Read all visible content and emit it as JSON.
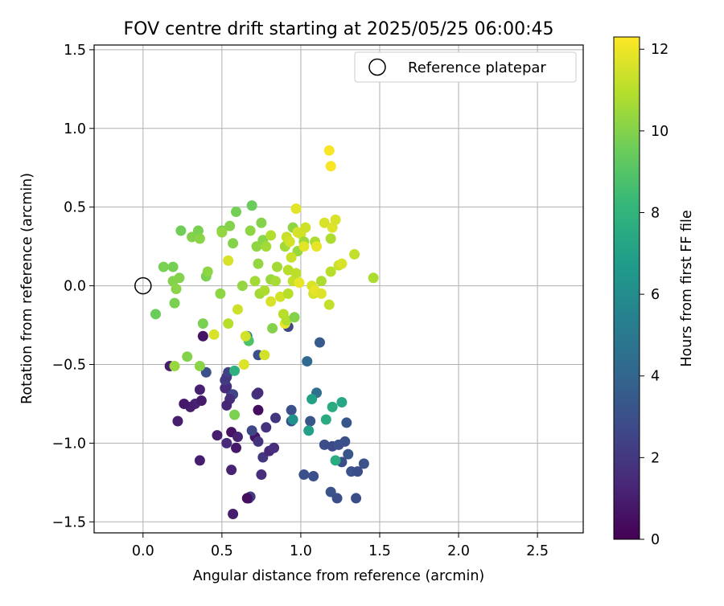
{
  "chart_data": {
    "type": "scatter",
    "title": "FOV centre drift starting at 2025/05/25 06:00:45",
    "xlabel": "Angular distance from reference (arcmin)",
    "ylabel": "Rotation from reference (arcmin)",
    "xlim": [
      -0.31,
      2.79
    ],
    "ylim": [
      -1.57,
      1.53
    ],
    "x_ticks": [
      "0.0",
      "0.5",
      "1.0",
      "1.5",
      "2.0",
      "2.5"
    ],
    "x_tick_values": [
      0,
      0.5,
      1.0,
      1.5,
      2.0,
      2.5
    ],
    "y_ticks": [
      "1.5",
      "1.0",
      "0.5",
      "0.0",
      "−0.5",
      "−1.0",
      "−1.5"
    ],
    "y_tick_values": [
      1.5,
      1.0,
      0.5,
      0.0,
      -0.5,
      -1.0,
      -1.5
    ],
    "grid": true,
    "legend": {
      "placement": "top-right",
      "entries": [
        {
          "label": "Reference platepar",
          "marker": "open-circle"
        }
      ]
    },
    "reference_point": {
      "x": 0.0,
      "y": 0.0
    },
    "colorbar": {
      "label": "Hours from first FF file",
      "min": 0,
      "max": 12.3,
      "ticks": [
        "0",
        "2",
        "4",
        "6",
        "8",
        "10",
        "12"
      ],
      "tick_values": [
        0,
        2,
        4,
        6,
        8,
        10,
        12
      ],
      "colormap": "viridis"
    },
    "points": [
      {
        "x": 0.47,
        "y": -0.95,
        "h": 1.0
      },
      {
        "x": 0.53,
        "y": -0.64,
        "h": 2.0
      },
      {
        "x": 0.56,
        "y": -0.69,
        "h": 1.8
      },
      {
        "x": 0.57,
        "y": -1.45,
        "h": 1.0
      },
      {
        "x": 0.56,
        "y": -1.17,
        "h": 1.2
      },
      {
        "x": 0.59,
        "y": -1.03,
        "h": 0.8
      },
      {
        "x": 0.67,
        "y": -1.35,
        "h": 0.6
      },
      {
        "x": 0.68,
        "y": -1.34,
        "h": 2.2
      },
      {
        "x": 0.66,
        "y": -1.35,
        "h": 0.5
      },
      {
        "x": 0.33,
        "y": -0.75,
        "h": 1.2
      },
      {
        "x": 0.3,
        "y": -0.77,
        "h": 1.0
      },
      {
        "x": 0.26,
        "y": -0.75,
        "h": 0.8
      },
      {
        "x": 0.22,
        "y": -0.86,
        "h": 1.0
      },
      {
        "x": 0.37,
        "y": -0.73,
        "h": 0.9
      },
      {
        "x": 0.36,
        "y": -0.66,
        "h": 1.1
      },
      {
        "x": 0.36,
        "y": -1.11,
        "h": 1.0
      },
      {
        "x": 0.17,
        "y": -0.51,
        "h": 1.0
      },
      {
        "x": 0.38,
        "y": -0.32,
        "h": 0.6
      },
      {
        "x": 0.52,
        "y": -0.65,
        "h": 1.5
      },
      {
        "x": 0.52,
        "y": -0.6,
        "h": 2.2
      },
      {
        "x": 0.56,
        "y": -0.93,
        "h": 0.6
      },
      {
        "x": 0.53,
        "y": -1.0,
        "h": 1.5
      },
      {
        "x": 0.57,
        "y": -0.69,
        "h": 2.5
      },
      {
        "x": 0.6,
        "y": -0.96,
        "h": 1.2
      },
      {
        "x": 0.55,
        "y": -0.72,
        "h": 1.6
      },
      {
        "x": 0.53,
        "y": -0.76,
        "h": 1.3
      },
      {
        "x": 0.53,
        "y": -0.58,
        "h": 2.0
      },
      {
        "x": 0.54,
        "y": -0.55,
        "h": 2.4
      },
      {
        "x": 0.73,
        "y": -0.79,
        "h": 0.4
      },
      {
        "x": 0.71,
        "y": -0.96,
        "h": 0.7
      },
      {
        "x": 0.72,
        "y": -0.69,
        "h": 2.0
      },
      {
        "x": 0.73,
        "y": -0.68,
        "h": 1.6
      },
      {
        "x": 0.73,
        "y": -0.99,
        "h": 1.8
      },
      {
        "x": 0.69,
        "y": -0.92,
        "h": 2.6
      },
      {
        "x": 0.76,
        "y": -1.09,
        "h": 2.0
      },
      {
        "x": 0.75,
        "y": -1.2,
        "h": 1.6
      },
      {
        "x": 0.78,
        "y": -0.9,
        "h": 1.8
      },
      {
        "x": 0.8,
        "y": -1.05,
        "h": 1.4
      },
      {
        "x": 0.83,
        "y": -1.03,
        "h": 1.7
      },
      {
        "x": 0.84,
        "y": -0.84,
        "h": 1.9
      },
      {
        "x": 0.73,
        "y": -0.44,
        "h": 3.0
      },
      {
        "x": 0.92,
        "y": -0.26,
        "h": 2.6
      },
      {
        "x": 0.4,
        "y": -0.55,
        "h": 3.0
      },
      {
        "x": 0.94,
        "y": -0.79,
        "h": 3.0
      },
      {
        "x": 0.94,
        "y": -0.86,
        "h": 2.9
      },
      {
        "x": 1.02,
        "y": -1.2,
        "h": 3.0
      },
      {
        "x": 1.06,
        "y": -0.86,
        "h": 3.3
      },
      {
        "x": 1.08,
        "y": -1.21,
        "h": 3.0
      },
      {
        "x": 1.12,
        "y": -0.36,
        "h": 3.5
      },
      {
        "x": 1.04,
        "y": -0.48,
        "h": 4.2
      },
      {
        "x": 1.1,
        "y": -0.68,
        "h": 4.5
      },
      {
        "x": 1.15,
        "y": -1.01,
        "h": 2.9
      },
      {
        "x": 1.2,
        "y": -1.02,
        "h": 2.7
      },
      {
        "x": 1.19,
        "y": -1.31,
        "h": 3.2
      },
      {
        "x": 1.23,
        "y": -1.35,
        "h": 2.9
      },
      {
        "x": 1.24,
        "y": -1.01,
        "h": 3.0
      },
      {
        "x": 1.26,
        "y": -1.12,
        "h": 2.9
      },
      {
        "x": 1.28,
        "y": -0.99,
        "h": 3.0
      },
      {
        "x": 1.29,
        "y": -0.87,
        "h": 3.3
      },
      {
        "x": 1.3,
        "y": -1.07,
        "h": 3.3
      },
      {
        "x": 1.32,
        "y": -1.18,
        "h": 3.1
      },
      {
        "x": 1.35,
        "y": -1.35,
        "h": 2.9
      },
      {
        "x": 1.36,
        "y": -1.18,
        "h": 2.9
      },
      {
        "x": 1.4,
        "y": -1.13,
        "h": 3.1
      },
      {
        "x": 0.95,
        "y": -0.85,
        "h": 6.2
      },
      {
        "x": 1.05,
        "y": -0.92,
        "h": 7.0
      },
      {
        "x": 1.07,
        "y": -0.72,
        "h": 7.0
      },
      {
        "x": 1.16,
        "y": -0.85,
        "h": 7.5
      },
      {
        "x": 1.2,
        "y": -0.77,
        "h": 7.5
      },
      {
        "x": 1.26,
        "y": -0.74,
        "h": 7.3
      },
      {
        "x": 1.22,
        "y": -1.11,
        "h": 7.6
      },
      {
        "x": 0.58,
        "y": -0.54,
        "h": 7.8
      },
      {
        "x": 0.66,
        "y": -0.32,
        "h": 5.5
      },
      {
        "x": 0.67,
        "y": -0.35,
        "h": 8.8
      },
      {
        "x": 0.58,
        "y": -0.82,
        "h": 9.8
      },
      {
        "x": 0.2,
        "y": -0.51,
        "h": 10.4
      },
      {
        "x": 0.28,
        "y": -0.45,
        "h": 10.0
      },
      {
        "x": 0.36,
        "y": -0.51,
        "h": 10.1
      },
      {
        "x": 0.38,
        "y": -0.24,
        "h": 9.8
      },
      {
        "x": 0.08,
        "y": -0.18,
        "h": 9.5
      },
      {
        "x": 0.2,
        "y": -0.11,
        "h": 9.8
      },
      {
        "x": 0.19,
        "y": 0.03,
        "h": 10.0
      },
      {
        "x": 0.21,
        "y": -0.02,
        "h": 10.1
      },
      {
        "x": 0.23,
        "y": 0.05,
        "h": 10.0
      },
      {
        "x": 0.13,
        "y": 0.12,
        "h": 9.8
      },
      {
        "x": 0.19,
        "y": 0.12,
        "h": 9.7
      },
      {
        "x": 0.4,
        "y": 0.06,
        "h": 9.8
      },
      {
        "x": 0.41,
        "y": 0.09,
        "h": 10.2
      },
      {
        "x": 0.24,
        "y": 0.35,
        "h": 9.6
      },
      {
        "x": 0.31,
        "y": 0.31,
        "h": 10.0
      },
      {
        "x": 0.35,
        "y": 0.35,
        "h": 9.8
      },
      {
        "x": 0.36,
        "y": 0.3,
        "h": 10.1
      },
      {
        "x": 0.5,
        "y": 0.35,
        "h": 9.7
      },
      {
        "x": 0.5,
        "y": 0.34,
        "h": 10.3
      },
      {
        "x": 0.55,
        "y": 0.38,
        "h": 10.0
      },
      {
        "x": 0.57,
        "y": 0.27,
        "h": 10.0
      },
      {
        "x": 0.59,
        "y": 0.47,
        "h": 9.7
      },
      {
        "x": 0.69,
        "y": 0.51,
        "h": 9.5
      },
      {
        "x": 0.68,
        "y": 0.35,
        "h": 10.2
      },
      {
        "x": 0.72,
        "y": 0.25,
        "h": 10.2
      },
      {
        "x": 0.75,
        "y": 0.4,
        "h": 10.0
      },
      {
        "x": 0.76,
        "y": 0.29,
        "h": 10.1
      },
      {
        "x": 0.73,
        "y": 0.14,
        "h": 10.3
      },
      {
        "x": 0.78,
        "y": 0.25,
        "h": 10.6
      },
      {
        "x": 0.81,
        "y": 0.32,
        "h": 10.9
      },
      {
        "x": 0.71,
        "y": 0.03,
        "h": 10.6
      },
      {
        "x": 0.63,
        "y": 0.0,
        "h": 10.3
      },
      {
        "x": 0.49,
        "y": -0.05,
        "h": 10.2
      },
      {
        "x": 0.54,
        "y": 0.16,
        "h": 11.6
      },
      {
        "x": 0.6,
        "y": -0.15,
        "h": 11.4
      },
      {
        "x": 0.54,
        "y": -0.24,
        "h": 11.0
      },
      {
        "x": 0.45,
        "y": -0.31,
        "h": 11.6
      },
      {
        "x": 0.64,
        "y": -0.5,
        "h": 11.7
      },
      {
        "x": 0.65,
        "y": -0.32,
        "h": 11.5
      },
      {
        "x": 0.77,
        "y": -0.44,
        "h": 11.5
      },
      {
        "x": 0.74,
        "y": -0.05,
        "h": 10.6
      },
      {
        "x": 0.77,
        "y": -0.03,
        "h": 10.8
      },
      {
        "x": 0.82,
        "y": -0.27,
        "h": 10.0
      },
      {
        "x": 0.81,
        "y": 0.04,
        "h": 10.4
      },
      {
        "x": 0.84,
        "y": 0.03,
        "h": 10.7
      },
      {
        "x": 0.81,
        "y": -0.1,
        "h": 11.6
      },
      {
        "x": 0.87,
        "y": -0.07,
        "h": 11.5
      },
      {
        "x": 0.89,
        "y": -0.18,
        "h": 11.0
      },
      {
        "x": 0.9,
        "y": -0.24,
        "h": 11.9
      },
      {
        "x": 0.91,
        "y": -0.22,
        "h": 10.9
      },
      {
        "x": 0.92,
        "y": -0.05,
        "h": 11.0
      },
      {
        "x": 0.85,
        "y": 0.12,
        "h": 10.6
      },
      {
        "x": 0.9,
        "y": 0.25,
        "h": 10.6
      },
      {
        "x": 0.91,
        "y": 0.31,
        "h": 11.3
      },
      {
        "x": 0.93,
        "y": 0.28,
        "h": 11.5
      },
      {
        "x": 0.92,
        "y": 0.1,
        "h": 11.0
      },
      {
        "x": 0.95,
        "y": 0.37,
        "h": 10.2
      },
      {
        "x": 0.97,
        "y": 0.49,
        "h": 11.8
      },
      {
        "x": 0.98,
        "y": 0.22,
        "h": 10.4
      },
      {
        "x": 0.98,
        "y": 0.34,
        "h": 11.6
      },
      {
        "x": 0.95,
        "y": 0.03,
        "h": 11.2
      },
      {
        "x": 0.96,
        "y": -0.2,
        "h": 10.0
      },
      {
        "x": 0.97,
        "y": 0.08,
        "h": 11.1
      },
      {
        "x": 0.94,
        "y": 0.18,
        "h": 11.3
      },
      {
        "x": 0.99,
        "y": 0.02,
        "h": 11.9
      },
      {
        "x": 1.0,
        "y": 0.33,
        "h": 11.5
      },
      {
        "x": 1.02,
        "y": 0.28,
        "h": 10.5
      },
      {
        "x": 1.03,
        "y": 0.37,
        "h": 11.4
      },
      {
        "x": 1.02,
        "y": 0.25,
        "h": 11.8
      },
      {
        "x": 1.09,
        "y": 0.28,
        "h": 10.8
      },
      {
        "x": 1.1,
        "y": 0.25,
        "h": 11.9
      },
      {
        "x": 1.07,
        "y": 0.0,
        "h": 11.6
      },
      {
        "x": 1.08,
        "y": -0.05,
        "h": 11.5
      },
      {
        "x": 1.09,
        "y": -0.03,
        "h": 11.9
      },
      {
        "x": 1.13,
        "y": 0.03,
        "h": 10.8
      },
      {
        "x": 1.13,
        "y": -0.05,
        "h": 11.7
      },
      {
        "x": 1.15,
        "y": 0.4,
        "h": 11.6
      },
      {
        "x": 1.19,
        "y": 0.3,
        "h": 10.8
      },
      {
        "x": 1.2,
        "y": 0.37,
        "h": 11.7
      },
      {
        "x": 1.22,
        "y": 0.42,
        "h": 11.6
      },
      {
        "x": 1.19,
        "y": 0.09,
        "h": 11.0
      },
      {
        "x": 1.18,
        "y": -0.12,
        "h": 11.2
      },
      {
        "x": 1.24,
        "y": 0.13,
        "h": 11.3
      },
      {
        "x": 1.26,
        "y": 0.14,
        "h": 11.6
      },
      {
        "x": 1.34,
        "y": 0.2,
        "h": 11.2
      },
      {
        "x": 1.46,
        "y": 0.05,
        "h": 10.8
      },
      {
        "x": 1.18,
        "y": 0.86,
        "h": 12.2
      },
      {
        "x": 1.19,
        "y": 0.76,
        "h": 12.2
      }
    ]
  }
}
